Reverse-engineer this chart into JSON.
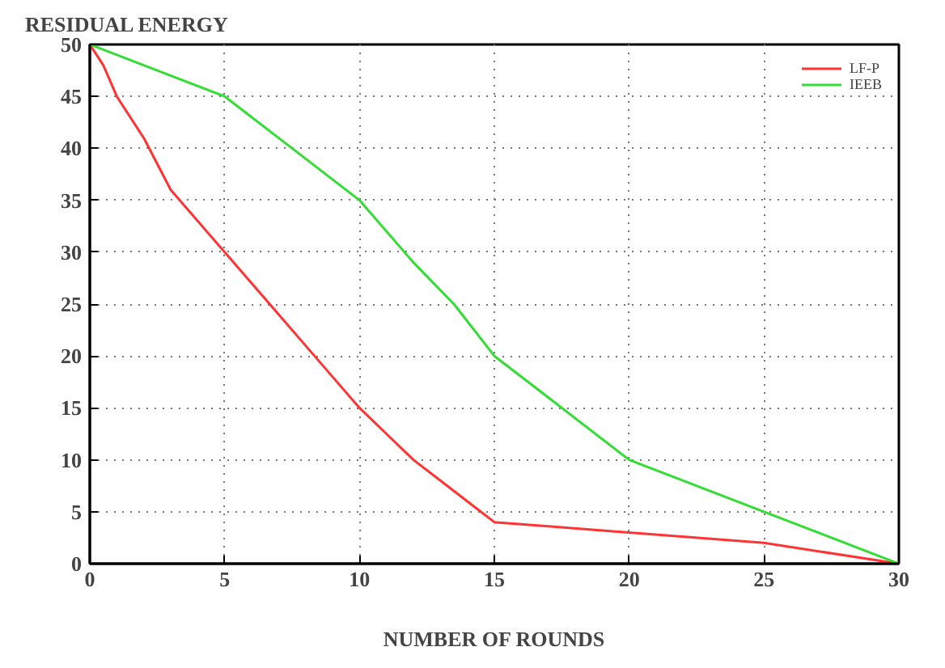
{
  "chart_data": {
    "type": "line",
    "xlabel": "NUMBER OF ROUNDS",
    "ylabel": "RESIDUAL ENERGY",
    "xlim": [
      0,
      30
    ],
    "ylim": [
      0,
      50
    ],
    "xticks": [
      0,
      5,
      10,
      15,
      20,
      25,
      30
    ],
    "yticks": [
      0,
      5,
      10,
      15,
      20,
      25,
      30,
      35,
      40,
      45,
      50
    ],
    "grid": true,
    "legend": "top right",
    "line_style": "solid",
    "series": [
      {
        "name": "LF-P",
        "color": "#ff3333",
        "x": [
          0,
          0.5,
          1,
          2,
          3,
          4,
          5,
          6,
          7,
          8,
          9,
          10,
          11,
          12,
          13,
          14,
          15,
          17,
          20,
          25,
          30
        ],
        "values": [
          50,
          48,
          45,
          41,
          36,
          33,
          30,
          27,
          24,
          21,
          18,
          15,
          12.5,
          10,
          8,
          6,
          4,
          3.6,
          3,
          2,
          0
        ]
      },
      {
        "name": "IEEB",
        "color": "#33dd33",
        "x": [
          0,
          2.5,
          5,
          7.5,
          10,
          12,
          13.5,
          15,
          17,
          20,
          25,
          30
        ],
        "values": [
          50,
          47.5,
          45,
          40,
          35,
          29,
          25,
          20,
          16,
          10,
          5,
          0
        ]
      }
    ]
  }
}
